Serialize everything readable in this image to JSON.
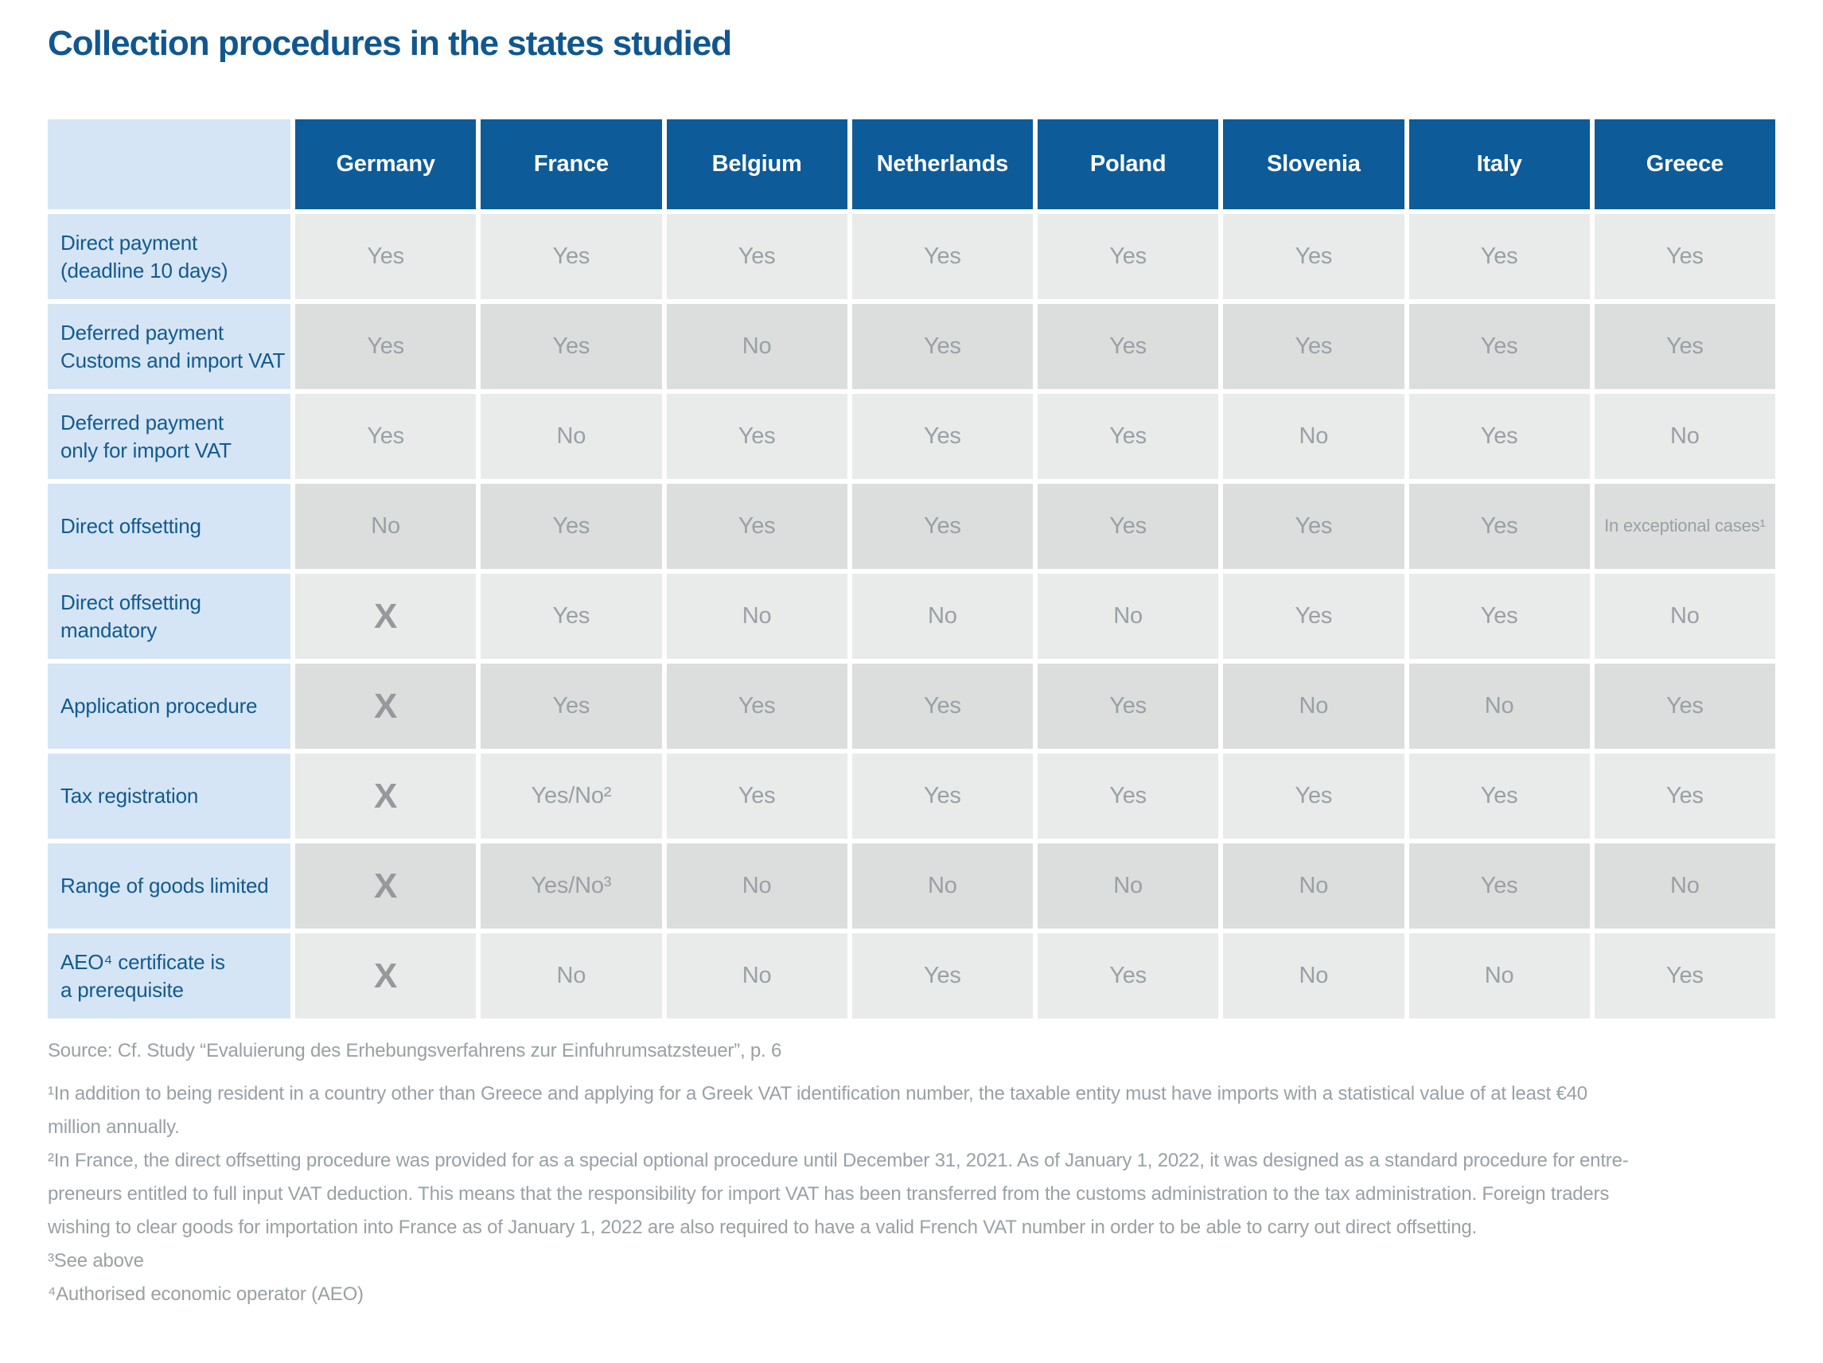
{
  "title": "Collection procedures in the states studied",
  "table": {
    "columns": [
      "Germany",
      "France",
      "Belgium",
      "Netherlands",
      "Poland",
      "Slovenia",
      "Italy",
      "Greece"
    ],
    "rows": [
      {
        "label": "Direct payment\n(deadline 10 days)",
        "values": [
          "Yes",
          "Yes",
          "Yes",
          "Yes",
          "Yes",
          "Yes",
          "Yes",
          "Yes"
        ]
      },
      {
        "label": "Deferred payment\nCustoms and import VAT",
        "values": [
          "Yes",
          "Yes",
          "No",
          "Yes",
          "Yes",
          "Yes",
          "Yes",
          "Yes"
        ]
      },
      {
        "label": "Deferred payment\nonly for import VAT",
        "values": [
          "Yes",
          "No",
          "Yes",
          "Yes",
          "Yes",
          "No",
          "Yes",
          "No"
        ]
      },
      {
        "label": "Direct offsetting",
        "values": [
          "No",
          "Yes",
          "Yes",
          "Yes",
          "Yes",
          "Yes",
          "Yes",
          "In exceptional cases¹"
        ]
      },
      {
        "label": "Direct offsetting\nmandatory",
        "values": [
          "X",
          "Yes",
          "No",
          "No",
          "No",
          "Yes",
          "Yes",
          "No"
        ]
      },
      {
        "label": "Application procedure",
        "values": [
          "X",
          "Yes",
          "Yes",
          "Yes",
          "Yes",
          "No",
          "No",
          "Yes"
        ]
      },
      {
        "label": "Tax registration",
        "values": [
          "X",
          "Yes/No²",
          "Yes",
          "Yes",
          "Yes",
          "Yes",
          "Yes",
          "Yes"
        ]
      },
      {
        "label": "Range of goods limited",
        "values": [
          "X",
          "Yes/No³",
          "No",
          "No",
          "No",
          "No",
          "Yes",
          "No"
        ]
      },
      {
        "label": "AEO⁴ certificate is\na prerequisite",
        "values": [
          "X",
          "No",
          "No",
          "Yes",
          "Yes",
          "No",
          "No",
          "Yes"
        ]
      }
    ]
  },
  "source": "Source: Cf. Study “Evaluierung des Erhebungsverfahrens zur Einfuhrumsatzsteuer”, p. 6",
  "footnotes": [
    "¹In addition to being resident in a country other than Greece and applying for a Greek VAT identification number, the taxable entity must have imports with a statistical value of at least €40\nmillion annually.",
    "²In France, the direct offsetting procedure was provided for as a special optional procedure until December 31, 2021. As of January 1, 2022, it was designed as a standard procedure for entre-\npreneurs entitled to full input VAT deduction. This means that the responsibility for import VAT has been transferred from the customs administration to the tax administration. Foreign traders\nwishing to clear goods for importation into France as of January 1, 2022 are also required to have a valid French VAT number in order to be able to carry out direct offsetting.",
    "³See above",
    "⁴Authorised economic operator (AEO)"
  ],
  "colors": {
    "accent_blue": "#0e5b99",
    "title_blue": "#11578f",
    "label_bg": "#d5e5f5",
    "label_text": "#135a8e",
    "row_light": "#e9eaea",
    "row_dark": "#dcdddd",
    "value_text": "#9aa0a4",
    "x_grey": "#96989b",
    "note_text": "#9aa0a4"
  }
}
